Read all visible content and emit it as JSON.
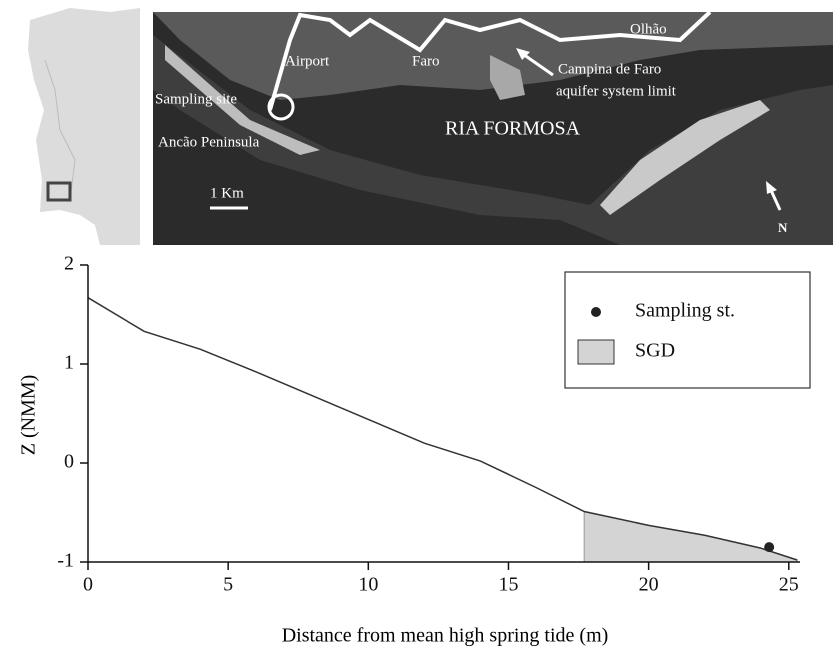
{
  "map": {
    "labels": {
      "airport": "Airport",
      "faro": "Faro",
      "olhao": "Olhão",
      "limit_1": "Campina de Faro",
      "limit_2": "aquifer system limit",
      "site": "Sampling site",
      "peninsula": "Ancão Peninsula",
      "ria": "RIA FORMOSA",
      "scale": "1 Km",
      "north": "N"
    }
  },
  "chart_data": {
    "type": "line",
    "xlabel": "Distance from mean high spring tide (m)",
    "ylabel": "Z (NMM)",
    "xlim": [
      0,
      25.4
    ],
    "ylim": [
      -1,
      2
    ],
    "xticks": [
      0,
      5,
      10,
      15,
      20,
      25
    ],
    "yticks": [
      2,
      1,
      0,
      {
        "value": -1,
        "label": "-1"
      }
    ],
    "x": [
      0,
      2,
      4,
      6,
      8,
      10,
      12,
      14,
      16,
      17.7,
      20,
      22,
      24,
      25.3
    ],
    "values": [
      1.67,
      1.33,
      1.15,
      0.92,
      0.68,
      0.44,
      0.2,
      0.02,
      -0.25,
      -0.49,
      -0.63,
      -0.73,
      -0.86,
      -0.98
    ],
    "color": "#333333",
    "series": [
      {
        "name": "Sampling st.",
        "type": "scatter",
        "x": [
          24.3
        ],
        "values": [
          -0.85
        ],
        "color": "#222222"
      },
      {
        "name": "SGD",
        "type": "area",
        "x": [
          17.7,
          20,
          22,
          24,
          25.3
        ],
        "values": [
          -0.49,
          -0.63,
          -0.73,
          -0.86,
          -0.98
        ],
        "color": "#d4d4d4"
      }
    ],
    "legend": "upper right"
  }
}
